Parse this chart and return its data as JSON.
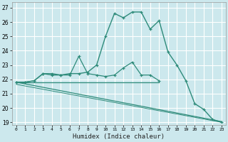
{
  "xlabel": "Humidex (Indice chaleur)",
  "bg_color": "#cce8ed",
  "grid_color": "#ffffff",
  "line_color": "#2e8b7a",
  "xlim": [
    -0.5,
    23.5
  ],
  "ylim": [
    18.8,
    27.4
  ],
  "yticks": [
    19,
    20,
    21,
    22,
    23,
    24,
    25,
    26,
    27
  ],
  "xticks": [
    0,
    1,
    2,
    3,
    4,
    5,
    6,
    7,
    8,
    9,
    10,
    11,
    12,
    13,
    14,
    15,
    16,
    17,
    18,
    19,
    20,
    21,
    22,
    23
  ],
  "series1_x": [
    0,
    1,
    2,
    3,
    4,
    5,
    6,
    7,
    8,
    9,
    10,
    11,
    12,
    13,
    14,
    15,
    16,
    17,
    18,
    19,
    20,
    21,
    22,
    23
  ],
  "series1_y": [
    21.8,
    21.8,
    21.9,
    22.4,
    22.3,
    22.3,
    22.4,
    22.4,
    22.5,
    23.0,
    25.0,
    26.6,
    26.3,
    26.7,
    26.7,
    25.5,
    26.1,
    23.9,
    23.0,
    21.9,
    20.3,
    19.9,
    19.2,
    19.0
  ],
  "series2_x": [
    0,
    1,
    2,
    3,
    4,
    5,
    6,
    7,
    8,
    9,
    10,
    11,
    12,
    13,
    14,
    15,
    16
  ],
  "series2_y": [
    21.8,
    21.8,
    21.9,
    22.4,
    22.4,
    22.3,
    22.3,
    23.6,
    22.4,
    22.3,
    22.2,
    22.3,
    22.8,
    23.2,
    22.3,
    22.3,
    21.9
  ],
  "flat_line_x": [
    0,
    16
  ],
  "flat_line_y": [
    21.8,
    21.8
  ],
  "diag_line1_x": [
    0,
    23
  ],
  "diag_line1_y": [
    21.8,
    19.05
  ],
  "diag_line2_x": [
    0,
    23
  ],
  "diag_line2_y": [
    21.65,
    19.0
  ]
}
